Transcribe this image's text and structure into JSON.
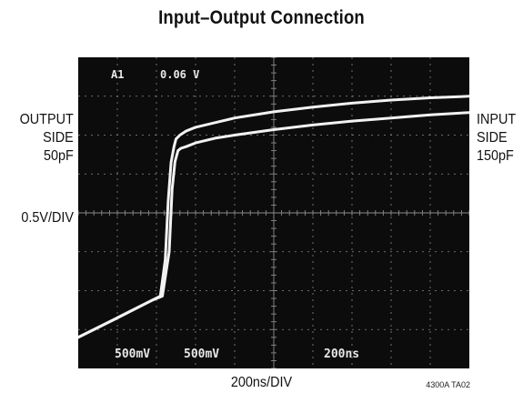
{
  "title": "Input–Output Connection",
  "left_labels": {
    "line1": "OUTPUT",
    "line2": "SIDE",
    "line3": "50pF",
    "scale": "0.5V/DIV"
  },
  "right_labels": {
    "line1": "INPUT",
    "line2": "SIDE",
    "line3": "150pF"
  },
  "footer": {
    "time_scale": "200ns/DIV",
    "figure_code": "4300A TA02"
  },
  "scope": {
    "cursor_label": "A1",
    "cursor_value": "0.06 V",
    "ch1_scale": "500mV",
    "ch2_scale": "500mV",
    "timebase": "200ns",
    "trace_color": "#f2f2f2",
    "screen_color": "#0c0c0c",
    "grid_color": "#8a8a8a"
  },
  "chart_data": {
    "type": "line",
    "title": "Input–Output Connection",
    "xlabel": "200ns/DIV",
    "ylabel": "0.5V/DIV",
    "x_unit": "ns",
    "y_unit": "V",
    "xlim": [
      0,
      2000
    ],
    "ylim": [
      -2.0,
      2.0
    ],
    "grid": true,
    "series": [
      {
        "name": "OUTPUT SIDE 50pF",
        "x": [
          0,
          200,
          380,
          420,
          445,
          460,
          475,
          490,
          500,
          520,
          550,
          600,
          700,
          800,
          1000,
          1200,
          1400,
          1600,
          1800,
          2000
        ],
        "y": [
          -1.6,
          -1.35,
          -1.12,
          -1.07,
          -0.6,
          0.15,
          0.65,
          0.85,
          0.95,
          1.0,
          1.05,
          1.1,
          1.16,
          1.22,
          1.3,
          1.36,
          1.41,
          1.45,
          1.48,
          1.5
        ]
      },
      {
        "name": "INPUT SIDE 150pF",
        "x": [
          0,
          200,
          380,
          430,
          465,
          480,
          495,
          510,
          525,
          550,
          600,
          700,
          800,
          1000,
          1200,
          1400,
          1600,
          1800,
          2000
        ],
        "y": [
          -1.6,
          -1.35,
          -1.12,
          -1.07,
          -0.5,
          0.3,
          0.66,
          0.8,
          0.83,
          0.85,
          0.9,
          0.96,
          1.0,
          1.07,
          1.13,
          1.18,
          1.22,
          1.26,
          1.29
        ]
      }
    ]
  }
}
